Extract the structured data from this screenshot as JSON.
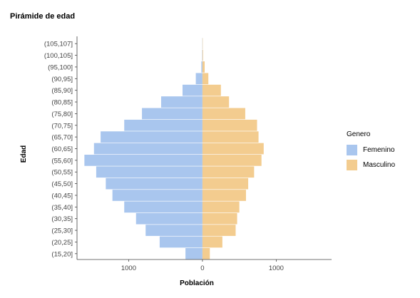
{
  "chart_data": {
    "type": "bar",
    "orientation": "horizontal",
    "title": "Pirámide de edad",
    "xlabel": "Población",
    "ylabel": "Edad",
    "categories": [
      "(15,20]",
      "(20,25]",
      "(25,30]",
      "(30,35]",
      "(35,40]",
      "(40,45]",
      "(45,50]",
      "(50,55]",
      "(55,60]",
      "(60,65]",
      "(65,70]",
      "(70,75]",
      "(75,80]",
      "(80,85]",
      "(85,90]",
      "(90,95]",
      "(95,100]",
      "(100,105]",
      "(105,107]"
    ],
    "series": [
      {
        "name": "Femenino",
        "color": "#a9c6ee",
        "values": [
          230,
          580,
          770,
          900,
          1060,
          1220,
          1310,
          1440,
          1600,
          1470,
          1380,
          1060,
          820,
          560,
          270,
          90,
          15,
          5,
          3
        ]
      },
      {
        "name": "Masculino",
        "color": "#f3cc8f",
        "values": [
          100,
          270,
          450,
          470,
          500,
          590,
          620,
          700,
          800,
          830,
          760,
          740,
          580,
          360,
          250,
          80,
          30,
          8,
          4
        ]
      }
    ],
    "xticks": [
      -1000,
      0,
      1000
    ],
    "xtick_labels": [
      "1000",
      "0",
      "1000"
    ],
    "xlim": [
      -1700,
      1750
    ],
    "grid": false,
    "legend_title": "Genero",
    "legend_position": "right"
  }
}
